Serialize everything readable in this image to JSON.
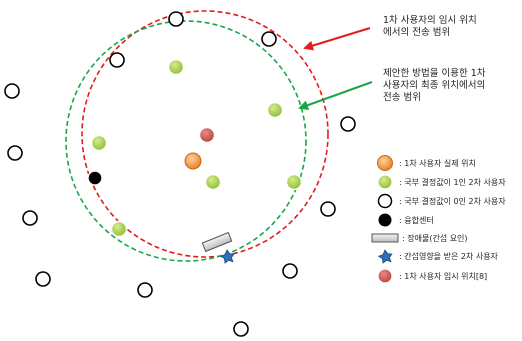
{
  "annotations": {
    "red_circle_note": [
      "1차 사용자의 임시 위치",
      "에서의 전송 범위"
    ],
    "green_circle_note": [
      "제안한 방법을 이용한 1차",
      "사용자의 최종 위치에서의",
      "전송 범위"
    ]
  },
  "legend": {
    "items": [
      {
        "icon": "orange-circle-icon",
        "color": "#f0923a",
        "label": ": 1차 사용자 실제 위치"
      },
      {
        "icon": "green-circle-icon",
        "color": "#9bc23c",
        "label": ": 국부 결정값이 1인 2차 사용자"
      },
      {
        "icon": "white-circle-icon",
        "color": "#ffffff",
        "label": ": 국부 결정값이 0인 2차 사용자"
      },
      {
        "icon": "black-circle-icon",
        "color": "#000000",
        "label": ": 융합센터"
      },
      {
        "icon": "obstacle-rect-icon",
        "color": "#d9d9d9",
        "label": ": 장애물(간섭 요인)"
      },
      {
        "icon": "blue-star-icon",
        "color": "#2f6db5",
        "label": ": 간섭영향을 받은 2차 사용자"
      },
      {
        "icon": "red-circle-icon",
        "color": "#c0504d",
        "label": ": 1차 사용자 임시 위치[8]"
      }
    ]
  },
  "colors": {
    "red_range": "#e31b1b",
    "green_range": "#1aa64b",
    "orange_user": "#f0923a",
    "green_user": "#9bc23c",
    "red_user": "#c0504d",
    "star": "#2f6db5"
  }
}
